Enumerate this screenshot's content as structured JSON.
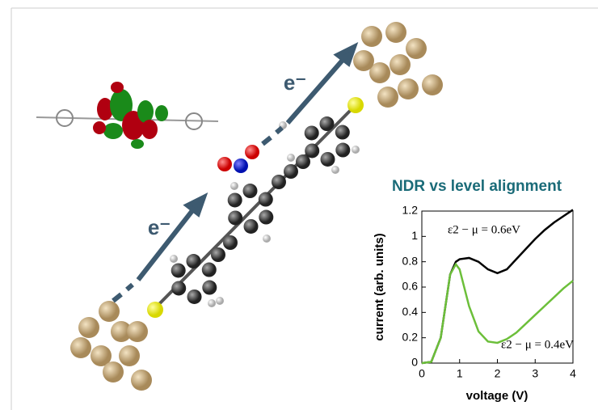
{
  "figure": {
    "electron_labels": [
      "e⁻",
      "e⁻"
    ]
  },
  "chart_data": {
    "type": "line",
    "title": "NDR vs level alignment",
    "x_label": "voltage (V)",
    "y_label": "current (arb. units)",
    "x": [
      0,
      0.25,
      0.5,
      0.75,
      0.9,
      1,
      1.25,
      1.5,
      1.75,
      2,
      2.25,
      2.5,
      2.75,
      3,
      3.25,
      3.5,
      3.75,
      4
    ],
    "series": [
      {
        "name": "ε2 − μ = 0.6eV",
        "color": "#000000",
        "values": [
          0,
          0.01,
          0.2,
          0.7,
          0.8,
          0.82,
          0.83,
          0.8,
          0.74,
          0.71,
          0.74,
          0.82,
          0.9,
          0.98,
          1.05,
          1.11,
          1.16,
          1.21
        ]
      },
      {
        "name": "ε2 − μ = 0.4eV",
        "color": "#6cbf3a",
        "values": [
          0,
          0.01,
          0.2,
          0.7,
          0.78,
          0.74,
          0.45,
          0.25,
          0.17,
          0.16,
          0.19,
          0.24,
          0.31,
          0.38,
          0.45,
          0.52,
          0.59,
          0.65
        ]
      }
    ],
    "xlim": [
      0,
      4
    ],
    "ylim": [
      0,
      1.2
    ],
    "xticks": [
      0,
      1,
      2,
      3,
      4
    ],
    "yticks": [
      0,
      0.2,
      0.4,
      0.6,
      0.8,
      1,
      1.2
    ]
  }
}
